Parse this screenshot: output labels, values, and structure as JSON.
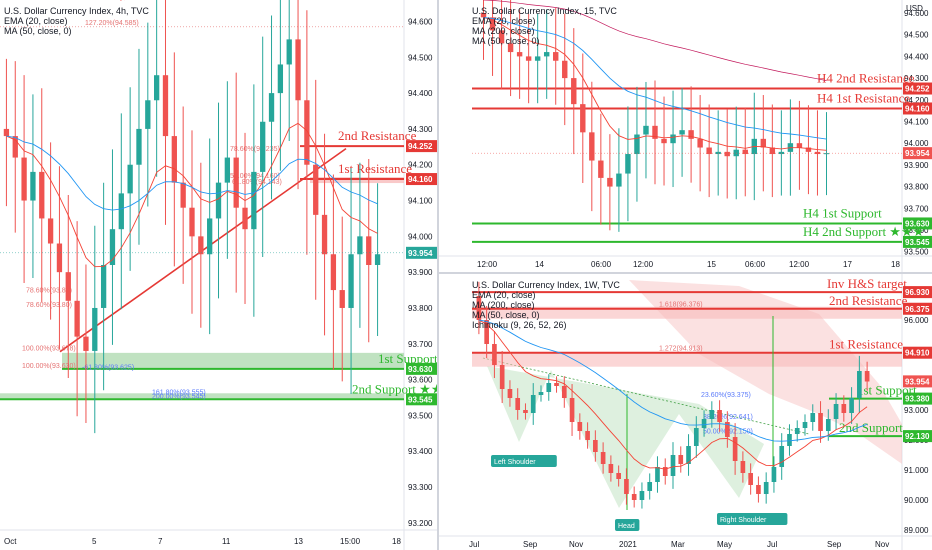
{
  "colors": {
    "bull": "#26a69a",
    "bear": "#ef5350",
    "resistance": "#e53935",
    "support": "#2eb82e",
    "ema20": "#f44336",
    "ma50": "#2196f3",
    "fib": "#e57373",
    "neckline_area": "#c8e6c9",
    "cloud": "#f8c8c8"
  },
  "left_panel": {
    "title": "U.S. Dollar Currency Index, 4h, TVC",
    "ema_label": "EMA (20, close)",
    "ma_label": "MA (50, close, 0)",
    "fib_top_label": "127.20%(94.585)",
    "current_price": "93.954",
    "levels": [
      {
        "name": "2nd Resistance",
        "value": 94.252,
        "tag": "94.252",
        "kind": "resistance"
      },
      {
        "name": "1st Resistance",
        "value": 94.16,
        "tag": "94.160",
        "kind": "resistance"
      },
      {
        "name": "1st Support",
        "value": 93.63,
        "tag": "93.630",
        "kind": "support"
      },
      {
        "name": "2nd Support ★★★",
        "value": 93.545,
        "tag": "93.545",
        "kind": "support"
      }
    ],
    "fib_labels": [
      {
        "text": "78.60%(94.235)",
        "value": 94.235
      },
      {
        "text": "50.00%(94.160)",
        "value": 94.16
      },
      {
        "text": "61.80%(94.143)",
        "value": 94.143
      },
      {
        "text": "78.60%(93.84)",
        "value": 93.84
      },
      {
        "text": "78.60%(93.80)",
        "value": 93.8
      },
      {
        "text": "100.00%(93.678)",
        "value": 93.678
      },
      {
        "text": "100.00%(93.630)",
        "value": 93.63
      },
      {
        "text": "-61.80%(93.625)",
        "value": 93.625
      },
      {
        "text": "161.80%(93.555)",
        "value": 93.555
      },
      {
        "text": "200.00%(93.545)",
        "value": 93.545
      }
    ],
    "y_ticks": [
      "94.600",
      "94.500",
      "94.400",
      "94.300",
      "94.200",
      "94.100",
      "94.000",
      "93.900",
      "93.800",
      "93.700",
      "93.600",
      "93.500",
      "93.400",
      "93.300",
      "93.200"
    ],
    "x_ticks": [
      "Oct",
      "5",
      "7",
      "11",
      "13",
      "15:00",
      "18"
    ]
  },
  "tr_panel": {
    "title": "U.S. Dollar Currency Index, 15, TVC",
    "currency": "USD",
    "ema_label": "EMA (20, close)",
    "ma_label": "MA (200, close)",
    "ma50_label": "MA (50, close, 0)",
    "current_price": "93.954",
    "levels": [
      {
        "name": "H4 2nd Resistance",
        "value": 94.252,
        "tag": "94.252",
        "kind": "resistance"
      },
      {
        "name": "H4 1st Resistance",
        "value": 94.16,
        "tag": "94.160",
        "kind": "resistance"
      },
      {
        "name": "H4 1st Support",
        "value": 93.63,
        "tag": "93.630",
        "kind": "support"
      },
      {
        "name": "H4 2nd Support ★★★",
        "value": 93.545,
        "tag": "93.545",
        "kind": "support"
      }
    ],
    "y_ticks": [
      "94.600",
      "94.500",
      "94.400",
      "94.300",
      "94.200",
      "94.100",
      "94.000",
      "93.900",
      "93.800",
      "93.700",
      "93.600",
      "93.500"
    ],
    "x_ticks": [
      "12:00",
      "14",
      "06:00",
      "12:00",
      "15",
      "06:00",
      "12:00",
      "17",
      "18"
    ]
  },
  "br_panel": {
    "title": "U.S. Dollar Currency Index, 1W, TVC",
    "ema_label": "EMA (20, close)",
    "ma_label": "MA (200, close)",
    "ma50_label": "MA (50, close, 0)",
    "ichimoku_label": "Ichimoku (9, 26, 52, 26)",
    "current_price": "93.954",
    "levels": [
      {
        "name": "Inv H&S target",
        "value": 96.93,
        "tag": "96.930",
        "kind": "resistance"
      },
      {
        "name": "2nd Resistance",
        "value": 96.375,
        "tag": "96.375",
        "kind": "resistance"
      },
      {
        "name": "1st Resistance",
        "value": 94.91,
        "tag": "94.910",
        "kind": "resistance"
      },
      {
        "name": "1st Support",
        "value": 93.38,
        "tag": "93.380",
        "kind": "support"
      },
      {
        "name": "2nd Support",
        "value": 92.13,
        "tag": "92.130",
        "kind": "support"
      }
    ],
    "fib_labels": [
      {
        "text": "1.618(96.376)",
        "value": 96.376
      },
      {
        "text": "1.272(94.913)",
        "value": 94.913
      },
      {
        "text": "23.60%(93.375)",
        "value": 93.375
      },
      {
        "text": "38.20%(92.641)",
        "value": 92.641
      },
      {
        "text": "50.00%(92.150)",
        "value": 92.15
      }
    ],
    "pattern_labels": [
      "Left Shoulder",
      "Head",
      "Right Shoulder"
    ],
    "y_ticks": [
      "97.000",
      "96.000",
      "95.000",
      "94.000",
      "93.000",
      "92.000",
      "91.000",
      "90.000",
      "89.000"
    ],
    "x_ticks": [
      "Jul",
      "Sep",
      "Nov",
      "2021",
      "Mar",
      "May",
      "Jul",
      "Sep",
      "Nov"
    ]
  },
  "chart_data": [
    {
      "type": "candlestick",
      "title": "U.S. Dollar Currency Index, 4h, TVC",
      "ylim": [
        93.18,
        94.66
      ],
      "series": [
        {
          "name": "close",
          "values": [
            94.28,
            94.22,
            94.1,
            94.18,
            94.05,
            93.98,
            93.9,
            93.82,
            93.72,
            93.68,
            93.8,
            93.92,
            94.02,
            94.12,
            94.2,
            94.3,
            94.38,
            94.45,
            94.28,
            94.15,
            94.08,
            94.0,
            93.95,
            94.05,
            94.15,
            94.22,
            94.08,
            94.02,
            94.18,
            94.32,
            94.4,
            94.48,
            94.55,
            94.38,
            94.2,
            94.06,
            93.95,
            93.85,
            93.8,
            93.95,
            94.0,
            93.92,
            93.95
          ]
        }
      ]
    },
    {
      "type": "candlestick",
      "title": "U.S. Dollar Currency Index, 15, TVC",
      "ylim": [
        93.48,
        94.66
      ],
      "series": [
        {
          "name": "close",
          "values": [
            94.58,
            94.52,
            94.46,
            94.42,
            94.4,
            94.38,
            94.4,
            94.42,
            94.38,
            94.3,
            94.18,
            94.05,
            93.92,
            93.84,
            93.8,
            93.86,
            93.95,
            94.04,
            94.08,
            94.02,
            94.0,
            94.04,
            94.06,
            94.02,
            93.98,
            93.95,
            93.96,
            93.94,
            93.97,
            93.95,
            94.02,
            93.98,
            93.95,
            93.96,
            94.0,
            93.98,
            93.96,
            93.95,
            93.954
          ]
        }
      ]
    },
    {
      "type": "candlestick",
      "title": "U.S. Dollar Currency Index, 1W, TVC",
      "ylim": [
        88.8,
        97.4
      ],
      "series": [
        {
          "name": "close",
          "values": [
            96.0,
            95.2,
            94.5,
            93.7,
            93.4,
            93.0,
            92.9,
            93.5,
            93.6,
            93.9,
            93.8,
            93.4,
            92.6,
            92.3,
            92.0,
            91.6,
            91.2,
            90.9,
            90.7,
            90.2,
            90.0,
            90.3,
            90.6,
            91.1,
            90.8,
            91.5,
            91.2,
            91.8,
            92.4,
            92.7,
            93.0,
            92.6,
            92.1,
            91.3,
            90.9,
            90.5,
            90.2,
            90.6,
            91.1,
            91.8,
            92.2,
            92.4,
            92.6,
            92.9,
            92.3,
            92.7,
            93.2,
            92.9,
            93.4,
            94.3,
            93.95
          ]
        }
      ]
    }
  ]
}
